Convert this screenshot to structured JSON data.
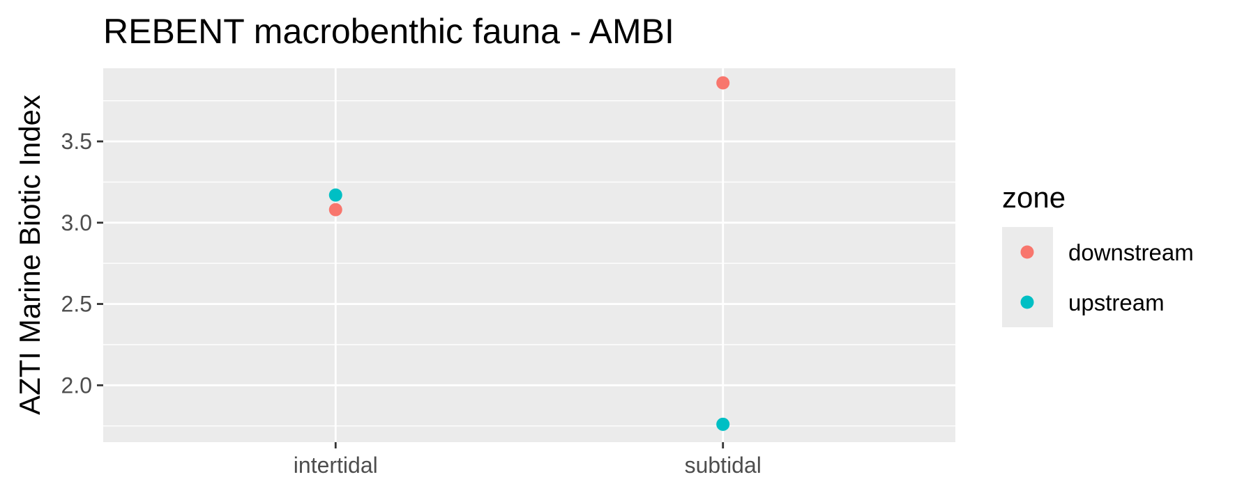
{
  "chart_data": {
    "type": "scatter",
    "title": "REBENT macrobenthic fauna - AMBI",
    "xlabel": "",
    "ylabel": "AZTI Marine Biotic Index",
    "categories": [
      "intertidal",
      "subtidal"
    ],
    "ylim": [
      1.65,
      3.95
    ],
    "yticks": [
      2.0,
      2.5,
      3.0,
      3.5
    ],
    "ytick_labels": [
      "2.0",
      "2.5",
      "3.0",
      "3.5"
    ],
    "grid": true,
    "legend": {
      "title": "zone",
      "position": "right",
      "entries": [
        "downstream",
        "upstream"
      ]
    },
    "series": [
      {
        "name": "downstream",
        "color": "#F8766D",
        "values": [
          3.08,
          3.86
        ]
      },
      {
        "name": "upstream",
        "color": "#00BFC4",
        "values": [
          3.17,
          1.76
        ]
      }
    ]
  }
}
